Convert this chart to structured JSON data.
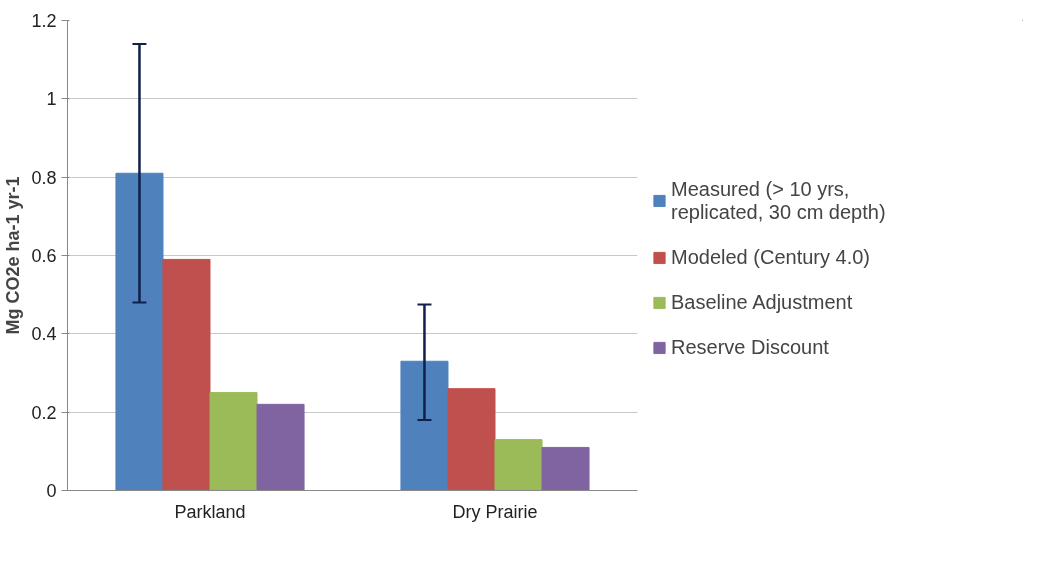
{
  "chart_data": {
    "type": "bar",
    "ylabel": "Mg CO2e ha-1 yr-1",
    "categories": [
      "Parkland",
      "Dry Prairie"
    ],
    "series": [
      {
        "name": "Measured (> 10 yrs, replicated, 30 cm depth)",
        "color": "#4f81bd",
        "values": [
          0.81,
          0.33
        ],
        "errors": [
          [
            0.48,
            1.14
          ],
          [
            0.18,
            0.475
          ]
        ]
      },
      {
        "name": "Modeled (Century 4.0)",
        "color": "#c0504d",
        "values": [
          0.59,
          0.26
        ]
      },
      {
        "name": "Baseline Adjustment",
        "color": "#9bbb59",
        "values": [
          0.25,
          0.13
        ]
      },
      {
        "name": "Reserve Discount",
        "color": "#8064a2",
        "values": [
          0.22,
          0.11
        ]
      }
    ],
    "ylim": [
      0,
      1.2
    ],
    "yticks": [
      0,
      0.2,
      0.4,
      0.6,
      0.8,
      1,
      1.2
    ],
    "grid": "y",
    "legend": "right"
  }
}
